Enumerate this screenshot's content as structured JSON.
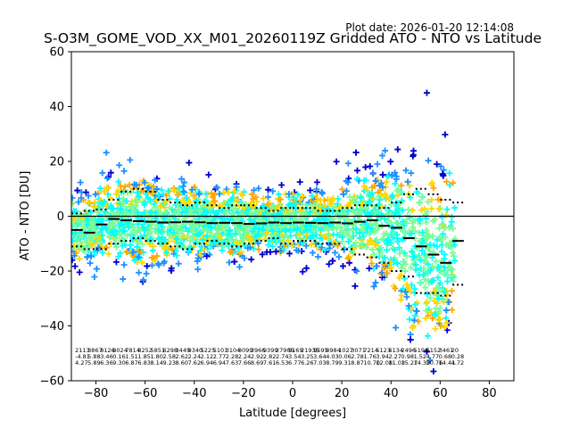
{
  "header": {
    "plot_date": "Plot date: 2026-01-20 12:14:08",
    "title": "S-O3M_GOME_VOD_XX_M01_20260119Z Gridded ATO - NTO vs Latitude"
  },
  "chart_data": {
    "type": "scatter",
    "title": "S-O3M_GOME_VOD_XX_M01_20260119Z Gridded ATO - NTO vs Latitude",
    "xlabel": "Latitude [degrees]",
    "ylabel": "ATO - NTO [DU]",
    "xlim": [
      -90,
      90
    ],
    "ylim": [
      -60,
      60
    ],
    "xticks": [
      -80,
      -60,
      -40,
      -20,
      0,
      20,
      40,
      60,
      80
    ],
    "yticks": [
      -60,
      -40,
      -20,
      0,
      20,
      40,
      60
    ],
    "zero_line": 0,
    "marker": "+",
    "density_colors": [
      "#0000cd",
      "#1e90ff",
      "#00ffff",
      "#7cfc98",
      "#ffd700",
      "#ffa500"
    ],
    "scatter_extent": {
      "lat_min": -90,
      "lat_max": 66
    },
    "bins_lat": [
      -90,
      -85,
      -80,
      -75,
      -70,
      -65,
      -60,
      -55,
      -50,
      -45,
      -40,
      -35,
      -30,
      -25,
      -20,
      -15,
      -10,
      -5,
      0,
      5,
      10,
      15,
      20,
      25,
      30,
      35,
      40,
      45,
      50,
      55,
      60,
      65
    ],
    "mean_curve": [
      -5,
      -6,
      -3,
      -1,
      -1.5,
      -1.8,
      -2,
      -2.3,
      -2.2,
      -2,
      -2.2,
      -2.5,
      -2.4,
      -2.5,
      -2.8,
      -2.6,
      -2.3,
      -2.5,
      -2.3,
      -2.4,
      -2.5,
      -2.3,
      -2.6,
      -2,
      -1.5,
      -3.5,
      -4.2,
      -8,
      -11,
      -14,
      -17,
      -9
    ],
    "upper_curve": [
      1,
      2,
      2.5,
      6,
      9,
      10,
      9,
      6,
      5,
      4,
      5,
      4,
      3,
      4,
      4,
      3,
      2,
      3,
      3,
      3,
      2,
      2,
      3,
      4,
      4,
      3,
      5,
      8,
      10,
      8,
      6,
      5
    ],
    "lower_curve": [
      -11,
      -12,
      -12,
      -10,
      -9,
      -8,
      -9,
      -10,
      -11,
      -12,
      -10,
      -9,
      -10,
      -11,
      -10,
      -9,
      -8,
      -10,
      -9,
      -9,
      -10,
      -10,
      -12,
      -14,
      -15,
      -17,
      -20,
      -22,
      -28,
      -28,
      -29,
      -25
    ],
    "stat_rows": [
      [
        "2113",
        "3867",
        "8126",
        "8024",
        "7814",
        "8252",
        "5851",
        "6298",
        "3449",
        "9340",
        "5225",
        "5101",
        "3104",
        "8099",
        "3966",
        "9399",
        "27905",
        "9169",
        "21935",
        "9595",
        "8984",
        "1027",
        "3071",
        "7214",
        "5123",
        "6134",
        "2496",
        "5196",
        "6152",
        "3461",
        "20"
      ],
      [
        "-4.81",
        "5.88",
        "3.46",
        "0.16",
        "1.51",
        "1.85",
        "1.80",
        "2.58",
        "2.62",
        "2.24",
        "2.12",
        "2.77",
        "2.28",
        "2.24",
        "2.92",
        "2.82",
        "2.74",
        "3.54",
        "3.25",
        "3.64",
        "4.03",
        "0.06",
        "2.78",
        "1.76",
        "3.94",
        "2.27",
        "0.98",
        "1.52",
        "4.77",
        "0.68",
        "0.28"
      ],
      [
        "4.27",
        "5.89",
        "6.36",
        "9.30",
        "6.87",
        "6.83",
        "8.14",
        "9.23",
        "8.60",
        "7.62",
        "6.94",
        "6.94",
        "7.63",
        "7.66",
        "8.69",
        "7.61",
        "6.53",
        "6.77",
        "6.26",
        "7.03",
        "8.79",
        "9.31",
        "8.87",
        "10.70",
        "12.08",
        "11.03",
        "15.27",
        "14.39",
        "20.76",
        "14.41",
        "4.72"
      ]
    ]
  }
}
